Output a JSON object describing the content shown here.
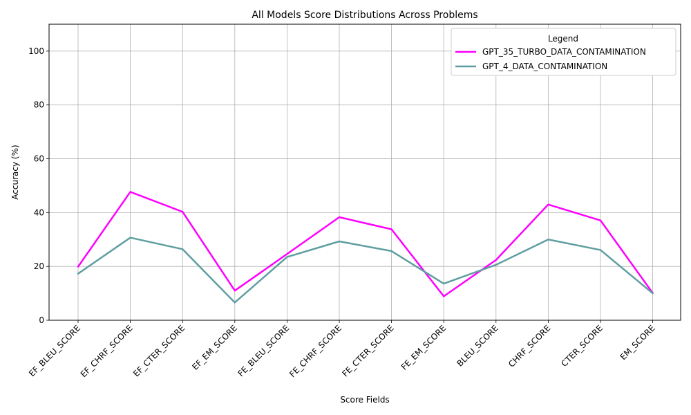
{
  "chart_data": {
    "type": "line",
    "title": "All Models Score Distributions Across Problems",
    "xlabel": "Score Fields",
    "ylabel": "Accuracy (%)",
    "ylim": [
      0,
      110
    ],
    "yticks": [
      0,
      20,
      40,
      60,
      80,
      100
    ],
    "grid": true,
    "legend": {
      "title": "Legend",
      "placement": "top-right"
    },
    "categories": [
      "EF_BLEU_SCORE",
      "EF_CHRF_SCORE",
      "EF_CTER_SCORE",
      "EF_EM_SCORE",
      "FE_BLEU_SCORE",
      "FE_CHRF_SCORE",
      "FE_CTER_SCORE",
      "FE_EM_SCORE",
      "BLEU_SCORE",
      "CHRF_SCORE",
      "CTER_SCORE",
      "EM_SCORE"
    ],
    "series": [
      {
        "name": "GPT_35_TURBO_DATA_CONTAMINATION",
        "color": "#ff00ff",
        "values": [
          19.9,
          47.7,
          40.3,
          11.0,
          24.6,
          38.3,
          33.8,
          8.9,
          22.4,
          43.0,
          37.1,
          10.1
        ]
      },
      {
        "name": "GPT_4_DATA_CONTAMINATION",
        "color": "#5f9ea0",
        "values": [
          17.3,
          30.7,
          26.4,
          6.6,
          23.5,
          29.3,
          25.7,
          13.6,
          20.6,
          30.0,
          26.1,
          10.0
        ]
      }
    ]
  }
}
